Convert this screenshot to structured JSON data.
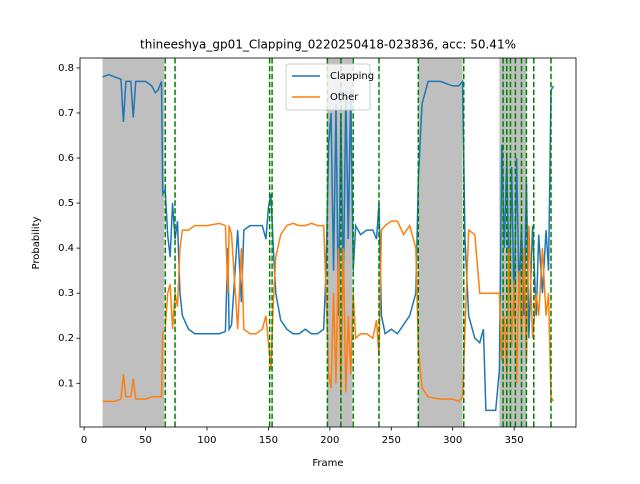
{
  "chart_data": {
    "type": "line",
    "title": "thineeshya_gp01_Clapping_0220250418-023836,  acc: 50.41%",
    "x_label": "Frame",
    "y_label": "Probability",
    "x": [
      15,
      20,
      25,
      30,
      32,
      34,
      38,
      40,
      42,
      50,
      55,
      58,
      60,
      63,
      64,
      66,
      68,
      70,
      72,
      74,
      76,
      78,
      80,
      85,
      90,
      100,
      110,
      115,
      117,
      118,
      120,
      125,
      128,
      130,
      135,
      140,
      145,
      148,
      150,
      152,
      154,
      156,
      160,
      165,
      170,
      175,
      180,
      185,
      190,
      195,
      197,
      199,
      201,
      203,
      205,
      207,
      209,
      211,
      213,
      215,
      217,
      219,
      221,
      225,
      230,
      235,
      238,
      240,
      242,
      245,
      250,
      255,
      260,
      265,
      270,
      272,
      275,
      280,
      290,
      300,
      305,
      308,
      310,
      313,
      318,
      322,
      325,
      327,
      335,
      338,
      340,
      342,
      344,
      346,
      348,
      350,
      352,
      354,
      356,
      358,
      360,
      362,
      365,
      368,
      370,
      373,
      376,
      378,
      380,
      382
    ],
    "series": [
      {
        "name": "Clapping",
        "color": "#1f77b4",
        "values": [
          0.78,
          0.785,
          0.78,
          0.775,
          0.68,
          0.77,
          0.77,
          0.69,
          0.77,
          0.77,
          0.76,
          0.745,
          0.75,
          0.77,
          0.52,
          0.53,
          0.43,
          0.38,
          0.5,
          0.42,
          0.46,
          0.3,
          0.25,
          0.22,
          0.21,
          0.21,
          0.21,
          0.215,
          0.4,
          0.22,
          0.23,
          0.44,
          0.28,
          0.44,
          0.45,
          0.45,
          0.45,
          0.42,
          0.49,
          0.52,
          0.4,
          0.3,
          0.24,
          0.22,
          0.21,
          0.21,
          0.22,
          0.21,
          0.21,
          0.22,
          0.36,
          0.63,
          0.7,
          0.35,
          0.72,
          0.25,
          0.7,
          0.3,
          0.75,
          0.42,
          0.75,
          0.35,
          0.45,
          0.43,
          0.44,
          0.44,
          0.42,
          0.5,
          0.25,
          0.21,
          0.22,
          0.21,
          0.23,
          0.25,
          0.3,
          0.55,
          0.72,
          0.77,
          0.77,
          0.76,
          0.76,
          0.77,
          0.42,
          0.25,
          0.2,
          0.19,
          0.22,
          0.04,
          0.04,
          0.13,
          0.63,
          0.4,
          0.6,
          0.3,
          0.58,
          0.25,
          0.6,
          0.3,
          0.45,
          0.25,
          0.55,
          0.2,
          0.45,
          0.25,
          0.43,
          0.3,
          0.44,
          0.35,
          0.75,
          0.76
        ]
      },
      {
        "name": "Other",
        "color": "#ff7f0e",
        "values": [
          0.06,
          0.06,
          0.06,
          0.065,
          0.12,
          0.07,
          0.07,
          0.11,
          0.065,
          0.065,
          0.07,
          0.07,
          0.07,
          0.07,
          0.21,
          0.22,
          0.3,
          0.32,
          0.22,
          0.3,
          0.27,
          0.4,
          0.44,
          0.44,
          0.45,
          0.45,
          0.455,
          0.45,
          0.3,
          0.45,
          0.43,
          0.22,
          0.4,
          0.22,
          0.21,
          0.21,
          0.22,
          0.25,
          0.19,
          0.13,
          0.28,
          0.38,
          0.43,
          0.45,
          0.455,
          0.45,
          0.45,
          0.455,
          0.45,
          0.45,
          0.3,
          0.12,
          0.09,
          0.3,
          0.1,
          0.4,
          0.08,
          0.4,
          0.08,
          0.25,
          0.12,
          0.3,
          0.2,
          0.21,
          0.21,
          0.2,
          0.24,
          0.16,
          0.44,
          0.45,
          0.46,
          0.46,
          0.43,
          0.45,
          0.4,
          0.18,
          0.09,
          0.07,
          0.065,
          0.065,
          0.06,
          0.07,
          0.22,
          0.44,
          0.43,
          0.3,
          0.3,
          0.3,
          0.3,
          0.3,
          0.15,
          0.25,
          0.12,
          0.4,
          0.18,
          0.33,
          0.1,
          0.35,
          0.2,
          0.4,
          0.15,
          0.45,
          0.2,
          0.3,
          0.25,
          0.4,
          0.25,
          0.3,
          0.07,
          0.06
        ]
      }
    ],
    "shaded_spans": [
      [
        15,
        65
      ],
      [
        198,
        218
      ],
      [
        272,
        308
      ],
      [
        338,
        360
      ]
    ],
    "vlines": [
      66,
      74,
      151,
      153,
      198,
      209,
      219,
      240,
      272,
      309,
      341,
      344,
      347,
      351,
      356,
      360,
      366,
      380
    ],
    "xlim": [
      -3.35,
      400.35
    ],
    "ylim": [
      0.003,
      0.822
    ],
    "xticks": [
      0,
      50,
      100,
      150,
      200,
      250,
      300,
      350
    ],
    "yticks": [
      0.1,
      0.2,
      0.3,
      0.4,
      0.5,
      0.6,
      0.7,
      0.8
    ],
    "legend": "upper center"
  }
}
